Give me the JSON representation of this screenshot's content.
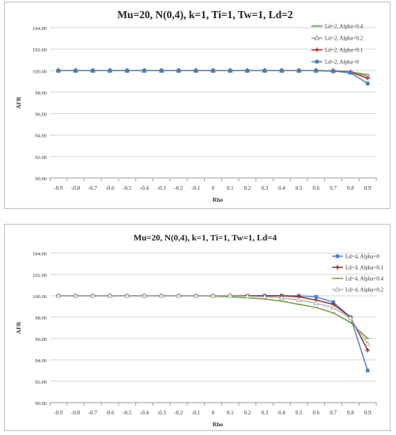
{
  "charts": [
    {
      "type": "line",
      "title": "Mu=20, N(0,4), k=1, Ti=1, Tw=1, Ld=2",
      "xlabel": "Rho",
      "ylabel": "AFR",
      "categories": [
        "-0.9",
        "-0.8",
        "-0.7",
        "-0.6",
        "-0.5",
        "-0.4",
        "-0.3",
        "-0.2",
        "-0.1",
        "0",
        "0.1",
        "0.2",
        "0.3",
        "0.4",
        "0.5",
        "0.6",
        "0.7",
        "0.8",
        "0.9"
      ],
      "ylim": [
        90,
        104
      ],
      "yticks": [
        "90.00",
        "92.00",
        "94.00",
        "96.00",
        "98.00",
        "100.00",
        "102.00",
        "104.00"
      ],
      "grid": true,
      "legend": "top-right",
      "series": [
        {
          "name": "Ld=2, Alpha=0.4",
          "color": "#4e9a3a",
          "marker": "none",
          "values": [
            100,
            100,
            100,
            100,
            100,
            100,
            100,
            100,
            100,
            100,
            100,
            100,
            100,
            100,
            100,
            100,
            100,
            99.9,
            99.6
          ]
        },
        {
          "name": "Ld=2, Alpha=0.2",
          "color": "#9a9a9a",
          "marker": "triangle",
          "values": [
            100,
            100,
            100,
            100,
            100,
            100,
            100,
            100,
            100,
            100,
            100,
            100,
            100,
            100,
            100,
            100,
            100,
            99.85,
            99.5
          ]
        },
        {
          "name": "Ld=2, Alpha=0.1",
          "color": "#c0281c",
          "marker": "plus",
          "values": [
            100,
            100,
            100,
            100,
            100,
            100,
            100,
            100,
            100,
            100,
            100,
            100,
            100,
            100,
            100,
            100,
            99.95,
            99.85,
            99.3
          ]
        },
        {
          "name": "Ld=2, Alpha=0",
          "color": "#3c82c4",
          "marker": "square",
          "values": [
            100,
            100,
            100,
            100,
            100,
            100,
            100,
            100,
            100,
            100,
            100,
            100,
            100,
            100,
            100,
            100,
            99.95,
            99.8,
            98.8
          ]
        }
      ]
    },
    {
      "type": "line",
      "title": "Mu=20, N(0,4), k=1, Ti=1, Tw=1, Ld=4",
      "xlabel": "Rho",
      "ylabel": "AFR",
      "categories": [
        "-0.9",
        "-0.8",
        "-0.7",
        "-0.6",
        "-0.5",
        "-0.4",
        "-0.3",
        "-0.2",
        "-0.1",
        "0",
        "0.1",
        "0.2",
        "0.3",
        "0.4",
        "0.5",
        "0.6",
        "0.7",
        "0.8",
        "0.9"
      ],
      "ylim": [
        90,
        104
      ],
      "yticks": [
        "90.00",
        "92.00",
        "94.00",
        "96.00",
        "98.00",
        "100.00",
        "102.00",
        "104.00"
      ],
      "grid": true,
      "legend": "top-right",
      "series": [
        {
          "name": "Ld=4, Alpha=0",
          "color": "#4a7ec8",
          "marker": "square",
          "values": [
            100,
            100,
            100,
            100,
            100,
            100,
            100,
            100,
            100,
            100,
            100,
            100,
            100,
            100,
            100,
            99.9,
            99.4,
            98.0,
            93.0
          ]
        },
        {
          "name": "Ld=4, Alpha=0.1",
          "color": "#8b2c1c",
          "marker": "plus",
          "values": [
            100,
            100,
            100,
            100,
            100,
            100,
            100,
            100,
            100,
            100,
            100,
            100,
            100,
            100,
            99.9,
            99.6,
            99.2,
            98.0,
            94.9
          ]
        },
        {
          "name": "Ld=4, Alpha=0.4",
          "color": "#6a9a3a",
          "marker": "none",
          "values": [
            100,
            100,
            100,
            100,
            100,
            100,
            100,
            100,
            100,
            99.95,
            99.9,
            99.8,
            99.7,
            99.5,
            99.2,
            98.9,
            98.4,
            97.5,
            96.0
          ]
        },
        {
          "name": "Ld=4, Alpha=0.2",
          "color": "#b0b0b0",
          "marker": "triangle",
          "values": [
            100,
            100,
            100,
            100,
            100,
            100,
            100,
            100,
            100,
            100,
            100,
            99.95,
            99.9,
            99.8,
            99.6,
            99.3,
            98.9,
            97.9,
            95.5
          ]
        }
      ]
    }
  ],
  "chart_data": [
    {
      "type": "line",
      "title": "Mu=20, N(0,4), k=1, Ti=1, Tw=1, Ld=2",
      "xlabel": "Rho",
      "ylabel": "AFR",
      "x": [
        -0.9,
        -0.8,
        -0.7,
        -0.6,
        -0.5,
        -0.4,
        -0.3,
        -0.2,
        -0.1,
        0,
        0.1,
        0.2,
        0.3,
        0.4,
        0.5,
        0.6,
        0.7,
        0.8,
        0.9
      ],
      "ylim": [
        90,
        104
      ],
      "series": [
        {
          "name": "Ld=2, Alpha=0.4",
          "values": [
            100,
            100,
            100,
            100,
            100,
            100,
            100,
            100,
            100,
            100,
            100,
            100,
            100,
            100,
            100,
            100,
            100,
            99.9,
            99.6
          ]
        },
        {
          "name": "Ld=2, Alpha=0.2",
          "values": [
            100,
            100,
            100,
            100,
            100,
            100,
            100,
            100,
            100,
            100,
            100,
            100,
            100,
            100,
            100,
            100,
            100,
            99.85,
            99.5
          ]
        },
        {
          "name": "Ld=2, Alpha=0.1",
          "values": [
            100,
            100,
            100,
            100,
            100,
            100,
            100,
            100,
            100,
            100,
            100,
            100,
            100,
            100,
            100,
            100,
            99.95,
            99.85,
            99.3
          ]
        },
        {
          "name": "Ld=2, Alpha=0",
          "values": [
            100,
            100,
            100,
            100,
            100,
            100,
            100,
            100,
            100,
            100,
            100,
            100,
            100,
            100,
            100,
            100,
            99.95,
            99.8,
            98.8
          ]
        }
      ]
    },
    {
      "type": "line",
      "title": "Mu=20, N(0,4), k=1, Ti=1, Tw=1, Ld=4",
      "xlabel": "Rho",
      "ylabel": "AFR",
      "x": [
        -0.9,
        -0.8,
        -0.7,
        -0.6,
        -0.5,
        -0.4,
        -0.3,
        -0.2,
        -0.1,
        0,
        0.1,
        0.2,
        0.3,
        0.4,
        0.5,
        0.6,
        0.7,
        0.8,
        0.9
      ],
      "ylim": [
        90,
        104
      ],
      "series": [
        {
          "name": "Ld=4, Alpha=0",
          "values": [
            100,
            100,
            100,
            100,
            100,
            100,
            100,
            100,
            100,
            100,
            100,
            100,
            100,
            100,
            100,
            99.9,
            99.4,
            98.0,
            93.0
          ]
        },
        {
          "name": "Ld=4, Alpha=0.1",
          "values": [
            100,
            100,
            100,
            100,
            100,
            100,
            100,
            100,
            100,
            100,
            100,
            100,
            100,
            100,
            99.9,
            99.6,
            99.2,
            98.0,
            94.9
          ]
        },
        {
          "name": "Ld=4, Alpha=0.4",
          "values": [
            100,
            100,
            100,
            100,
            100,
            100,
            100,
            100,
            100,
            99.95,
            99.9,
            99.8,
            99.7,
            99.5,
            99.2,
            98.9,
            98.4,
            97.5,
            96.0
          ]
        },
        {
          "name": "Ld=4, Alpha=0.2",
          "values": [
            100,
            100,
            100,
            100,
            100,
            100,
            100,
            100,
            100,
            100,
            100,
            99.95,
            99.9,
            99.8,
            99.6,
            99.3,
            98.9,
            97.9,
            95.5
          ]
        }
      ]
    }
  ]
}
